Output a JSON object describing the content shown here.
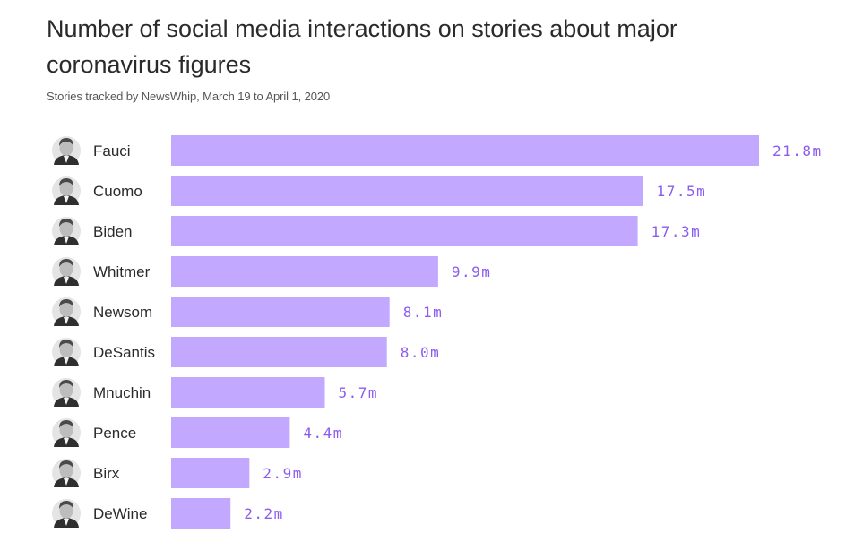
{
  "header": {
    "title": "Number of social media interactions on stories about major coronavirus figures",
    "subtitle": "Stories tracked by NewsWhip, March 19 to April 1, 2020"
  },
  "colors": {
    "bar": "#c2a8ff",
    "value_label": "#8c5cf0"
  },
  "chart_data": {
    "type": "bar",
    "orientation": "horizontal",
    "title": "Number of social media interactions on stories about major coronavirus figures",
    "subtitle": "Stories tracked by NewsWhip, March 19 to April 1, 2020",
    "categories": [
      "Fauci",
      "Cuomo",
      "Biden",
      "Whitmer",
      "Newsom",
      "DeSantis",
      "Mnuchin",
      "Pence",
      "Birx",
      "DeWine"
    ],
    "values": [
      21.8,
      17.5,
      17.3,
      9.9,
      8.1,
      8.0,
      5.7,
      4.4,
      2.9,
      2.2
    ],
    "value_labels": [
      "21.8m",
      "17.5m",
      "17.3m",
      "9.9m",
      "8.1m",
      "8.0m",
      "5.7m",
      "4.4m",
      "2.9m",
      "2.2m"
    ],
    "unit": "m",
    "xlim": [
      0,
      21.8
    ],
    "grid": false,
    "legend": "none",
    "icons": [
      "portrait-icon-fauci",
      "portrait-icon-cuomo",
      "portrait-icon-biden",
      "portrait-icon-whitmer",
      "portrait-icon-newsom",
      "portrait-icon-desantis",
      "portrait-icon-mnuchin",
      "portrait-icon-pence",
      "portrait-icon-birx",
      "portrait-icon-dewine"
    ]
  }
}
